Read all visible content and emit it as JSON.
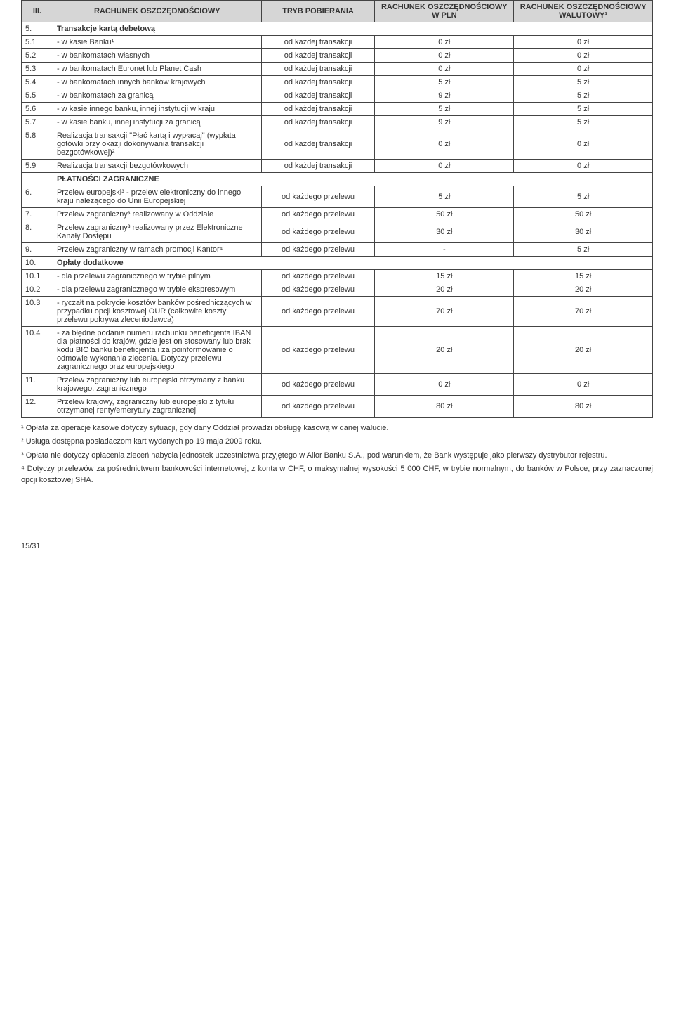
{
  "header": {
    "col1": "III.",
    "col2": "RACHUNEK OSZCZĘDNOŚCIOWY",
    "col3": "TRYB POBIERANIA",
    "col4": "RACHUNEK OSZCZĘDNOŚCIOWY W PLN",
    "col5": "RACHUNEK OSZCZĘDNOŚCIOWY WALUTOWY¹"
  },
  "rows": [
    {
      "section": true,
      "num": "5.",
      "desc": "Transakcje kartą debetową"
    },
    {
      "num": "5.1",
      "desc": " - w kasie Banku¹",
      "mode": "od każdej transakcji",
      "v1": "0 zł",
      "v2": "0 zł"
    },
    {
      "num": "5.2",
      "desc": " - w bankomatach własnych",
      "mode": "od każdej transakcji",
      "v1": "0 zł",
      "v2": "0 zł"
    },
    {
      "num": "5.3",
      "desc": " - w bankomatach Euronet lub Planet Cash",
      "mode": "od każdej transakcji",
      "v1": "0 zł",
      "v2": "0 zł"
    },
    {
      "num": "5.4",
      "desc": " - w bankomatach innych banków krajowych",
      "mode": "od każdej transakcji",
      "v1": "5 zł",
      "v2": "5 zł"
    },
    {
      "num": "5.5",
      "desc": " - w bankomatach za granicą",
      "mode": "od każdej transakcji",
      "v1": "9 zł",
      "v2": "5 zł"
    },
    {
      "num": "5.6",
      "desc": " - w kasie innego banku, innej instytucji w kraju",
      "mode": "od każdej transakcji",
      "v1": "5 zł",
      "v2": "5 zł"
    },
    {
      "num": "5.7",
      "desc": " - w kasie banku, innej instytucji za granicą",
      "mode": "od każdej transakcji",
      "v1": "9 zł",
      "v2": "5 zł"
    },
    {
      "num": "5.8",
      "desc": "Realizacja transakcji \"Płać kartą i wypłacaj\" (wypłata gotówki przy okazji dokonywania transakcji bezgotówkowej)²",
      "mode": "od każdej transakcji",
      "v1": "0 zł",
      "v2": "0 zł"
    },
    {
      "num": "5.9",
      "desc": "Realizacja transakcji bezgotówkowych",
      "mode": "od każdej transakcji",
      "v1": "0 zł",
      "v2": "0 zł"
    },
    {
      "section": true,
      "num": "",
      "desc": "PŁATNOŚCI ZAGRANICZNE"
    },
    {
      "num": "6.",
      "desc": "Przelew europejski³ - przelew elektroniczny do innego kraju należącego do Unii Europejskiej",
      "mode": "od każdego przelewu",
      "v1": "5 zł",
      "v2": "5 zł"
    },
    {
      "num": "7.",
      "desc": "Przelew zagraniczny³ realizowany w Oddziale",
      "mode": "od każdego przelewu",
      "v1": "50 zł",
      "v2": "50 zł"
    },
    {
      "num": "8.",
      "desc": "Przelew zagraniczny³ realizowany przez Elektroniczne Kanały Dostępu",
      "mode": "od każdego przelewu",
      "v1": "30 zł",
      "v2": "30 zł"
    },
    {
      "num": "9.",
      "desc": "Przelew zagraniczny w ramach promocji Kantor⁴",
      "mode": "od każdego przelewu",
      "v1": "-",
      "v2": "5 zł"
    },
    {
      "section": true,
      "num": "10.",
      "desc": "Opłaty dodatkowe"
    },
    {
      "num": "10.1",
      "desc": " - dla przelewu zagranicznego w trybie pilnym",
      "mode": "od każdego przelewu",
      "v1": "15 zł",
      "v2": "15 zł"
    },
    {
      "num": "10.2",
      "desc": " - dla przelewu zagranicznego w trybie ekspresowym",
      "mode": "od każdego przelewu",
      "v1": "20 zł",
      "v2": "20 zł"
    },
    {
      "num": "10.3",
      "desc": " - ryczałt na pokrycie kosztów banków pośredniczących w przypadku opcji kosztowej OUR (całkowite koszty przelewu pokrywa zleceniodawca)",
      "mode": "od każdego przelewu",
      "v1": "70 zł",
      "v2": "70 zł"
    },
    {
      "num": "10.4",
      "desc": " - za błędne podanie numeru rachunku beneficjenta IBAN dla płatności do krajów, gdzie jest on stosowany lub brak kodu BIC banku beneficjenta i za poinformowanie o odmowie wykonania zlecenia. Dotyczy przelewu zagranicznego oraz europejskiego",
      "mode": "od każdego przelewu",
      "v1": "20 zł",
      "v2": "20 zł"
    },
    {
      "num": "11.",
      "desc": "Przelew zagraniczny lub europejski otrzymany z banku krajowego, zagranicznego",
      "mode": "od każdego przelewu",
      "v1": "0 zł",
      "v2": "0 zł"
    },
    {
      "num": "12.",
      "desc": "Przelew krajowy, zagraniczny lub europejski z tytułu otrzymanej renty/emerytury zagranicznej",
      "mode": "od każdego przelewu",
      "v1": "80 zł",
      "v2": "80 zł"
    }
  ],
  "footnotes": {
    "f1": "¹ Opłata za operacje kasowe dotyczy sytuacji, gdy dany Oddział prowadzi obsługę kasową w danej walucie.",
    "f2": "² Usługa dostępna posiadaczom kart wydanych po 19 maja 2009 roku.",
    "f3": "³ Opłata nie dotyczy opłacenia zleceń nabycia jednostek uczestnictwa przyjętego w Alior Banku S.A., pod warunkiem, że Bank występuje jako pierwszy dystrybutor rejestru.",
    "f4": "⁴ Dotyczy przelewów za pośrednictwem bankowości internetowej, z konta w CHF, o maksymalnej wysokości 5 000 CHF, w trybie normalnym, do banków w Polsce, przy zaznaczonej opcji kosztowej SHA."
  },
  "pageNumber": "15/31"
}
